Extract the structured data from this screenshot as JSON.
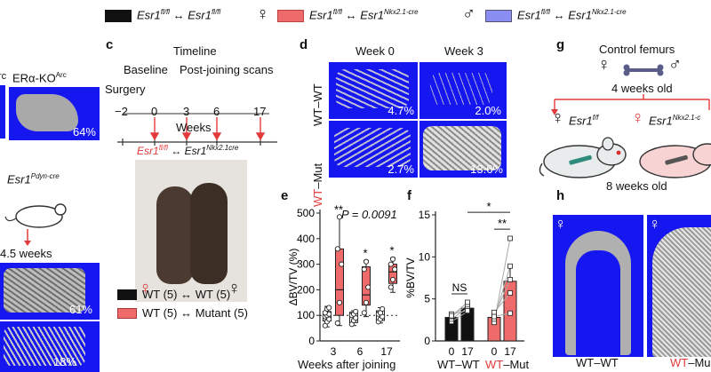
{
  "legend": {
    "items": [
      {
        "left": "Esr1",
        "left_sup": "fl/fl",
        "arrow": "↔",
        "right": "Esr1",
        "right_sup": "fl/fl"
      },
      {
        "symbol": "♀",
        "left": "Esr1",
        "left_sup": "fl/fl",
        "arrow": "↔",
        "right": "Esr1",
        "right_sup": "Nkx2.1-cre"
      },
      {
        "symbol": "♂",
        "left": "Esr1",
        "left_sup": "fl/fl",
        "arrow": "↔",
        "right": "Esr1",
        "right_sup": "Nkx2.1-cre"
      }
    ],
    "colors": [
      "#111111",
      "#ef6b6b",
      "#8a8ef2"
    ]
  },
  "panel_b_partial": {
    "label_frag": "rc",
    "title": "ERα-KO",
    "title_sup": "Arc",
    "pct1": "64%",
    "gene": "Esr1",
    "gene_sup": "Pdyn-cre",
    "age": "4.5 weeks",
    "pct2": "61%",
    "pct3": "18%"
  },
  "panel_c": {
    "letter": "c",
    "timeline_title": "Timeline",
    "baseline": "Baseline",
    "post": "Post-joining scans",
    "surgery": "Surgery",
    "ticks": [
      "−2",
      "0",
      "3",
      "6",
      "17"
    ],
    "axis_label": "Weeks",
    "pair_left": "Esr1",
    "pair_left_sup": "fl/fl",
    "pair_arrow": "↔",
    "pair_right": "Esr1",
    "pair_right_sup": "Nkx2.1cre",
    "legend": [
      {
        "label": "WT (5) ↔ WT (5)",
        "color": "#111111"
      },
      {
        "label": "WT (5) ↔ Mutant (5)",
        "color": "#ef6b6b"
      }
    ]
  },
  "panel_d": {
    "letter": "d",
    "col_headers": [
      "Week 0",
      "Week 3"
    ],
    "row1_label": "WT–WT",
    "row2_label_a": "WT",
    "row2_label_b": "–Mut",
    "values": [
      "4.7%",
      "2.0%",
      "2.7%",
      "13.6%"
    ]
  },
  "panel_e": {
    "letter": "e",
    "p_value": "P = 0.0091",
    "ylabel": "ΔBV/TV (%)",
    "xlabel": "Weeks after joining",
    "annotations": [
      "**",
      "*",
      "*"
    ]
  },
  "panel_f": {
    "letter": "f",
    "ylabel": "%BV/TV",
    "ns": "NS",
    "stars": [
      "*",
      "**"
    ],
    "group1": "WT–WT",
    "group2_a": "WT",
    "group2_b": "–Mut"
  },
  "panel_g": {
    "letter": "g",
    "title": "Control femurs",
    "age1": "4 weeks old",
    "left_gene": "Esr1",
    "left_sup": "f/f",
    "right_gene": "Esr1",
    "right_sup": "Nkx2.1-c",
    "age2": "8 weeks old"
  },
  "panel_h": {
    "letter": "h",
    "label1": "WT–WT",
    "label2_a": "WT",
    "label2_b": "–Mu"
  },
  "chart_data": [
    {
      "type": "bar",
      "panel": "e",
      "title": "",
      "xlabel": "Weeks after joining",
      "ylabel": "ΔBV/TV (%)",
      "categories": [
        "3",
        "6",
        "17"
      ],
      "ylim": [
        0,
        500
      ],
      "yticks": [
        0,
        100,
        200,
        300,
        400,
        500
      ],
      "series": [
        {
          "name": "WT (5) ↔ WT (5)",
          "color": "#111111",
          "box": [
            [
              78,
              100,
              115
            ],
            [
              72,
              95,
              112
            ],
            [
              80,
              100,
              118
            ]
          ],
          "whisker": [
            [
              55,
              135
            ],
            [
              60,
              118
            ],
            [
              70,
              130
            ]
          ],
          "points": [
            [
              60,
              75,
              85,
              95,
              100,
              105,
              110,
              125,
              130
            ],
            [
              65,
              80,
              90,
              100,
              105,
              115
            ],
            [
              75,
              85,
              95,
              105,
              110,
              125
            ]
          ]
        },
        {
          "name": "WT (5) ↔ Mutant (5)",
          "color": "#ef6b6b",
          "box": [
            [
              100,
              200,
              360
            ],
            [
              140,
              180,
              290
            ],
            [
              225,
              270,
              300
            ]
          ],
          "whisker": [
            [
              60,
              485
            ],
            [
              95,
              315
            ],
            [
              190,
              325
            ]
          ],
          "points": [
            [
              70,
              150,
              300,
              360,
              485
            ],
            [
              110,
              150,
              210,
              280,
              310
            ],
            [
              210,
              240,
              280,
              300,
              320
            ]
          ]
        }
      ]
    },
    {
      "type": "bar",
      "panel": "f",
      "title": "",
      "xlabel": "",
      "ylabel": "%BV/TV",
      "categories": [
        "0",
        "17",
        "0",
        "17"
      ],
      "groups": [
        "WT–WT",
        "WT–Mut"
      ],
      "ylim": [
        0,
        15
      ],
      "yticks": [
        0,
        5,
        10,
        15
      ],
      "values": [
        2.8,
        3.9,
        2.8,
        7.1
      ],
      "errors": [
        0.3,
        0.5,
        0.4,
        1.7
      ],
      "colors": [
        "#111111",
        "#111111",
        "#ef6b6b",
        "#ef6b6b"
      ],
      "pairs_wt": [
        [
          2.3,
          3.5
        ],
        [
          2.6,
          3.9
        ],
        [
          2.9,
          4.3
        ],
        [
          3.2,
          3.6
        ],
        [
          3.0,
          4.6
        ]
      ],
      "pairs_mut": [
        [
          2.2,
          12.2
        ],
        [
          2.6,
          8.9
        ],
        [
          3.0,
          7.3
        ],
        [
          3.4,
          5.7
        ],
        [
          2.9,
          3.3
        ]
      ]
    }
  ]
}
